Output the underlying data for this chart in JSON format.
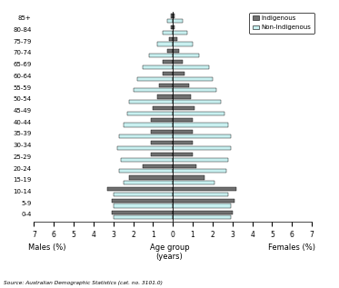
{
  "age_groups": [
    "0-4",
    "5-9",
    "10-14",
    "15-19",
    "20-24",
    "25-29",
    "30-34",
    "35-39",
    "40-44",
    "45-49",
    "50-54",
    "55-59",
    "60-64",
    "65-69",
    "70-74",
    "75-79",
    "80-84",
    "85+"
  ],
  "males_indigenous": [
    3.1,
    3.1,
    3.3,
    2.2,
    1.5,
    1.1,
    1.1,
    1.1,
    1.1,
    1.0,
    0.8,
    0.7,
    0.5,
    0.5,
    0.3,
    0.2,
    0.1,
    0.1
  ],
  "males_nonindigenous": [
    3.0,
    3.0,
    3.0,
    2.5,
    2.7,
    2.6,
    2.8,
    2.7,
    2.5,
    2.3,
    2.2,
    2.0,
    1.8,
    1.5,
    1.2,
    0.8,
    0.5,
    0.3
  ],
  "females_indigenous": [
    3.0,
    3.1,
    3.2,
    1.6,
    1.2,
    1.0,
    1.0,
    1.0,
    1.0,
    1.1,
    0.9,
    0.8,
    0.6,
    0.5,
    0.3,
    0.2,
    0.1,
    0.1
  ],
  "females_nonindigenous": [
    2.9,
    2.9,
    2.8,
    2.1,
    2.7,
    2.8,
    2.9,
    2.9,
    2.8,
    2.6,
    2.4,
    2.2,
    2.0,
    1.8,
    1.3,
    1.0,
    0.7,
    0.5
  ],
  "indigenous_color": "#707070",
  "nonindigenous_color": "#c8f0f0",
  "xlabel_left": "Males (%)",
  "xlabel_center": "Age group\n(years)",
  "xlabel_right": "Females (%)",
  "source": "Source: Australian Demographic Statistics (cat. no. 3101.0)",
  "xlim": 7,
  "background_color": "#ffffff"
}
